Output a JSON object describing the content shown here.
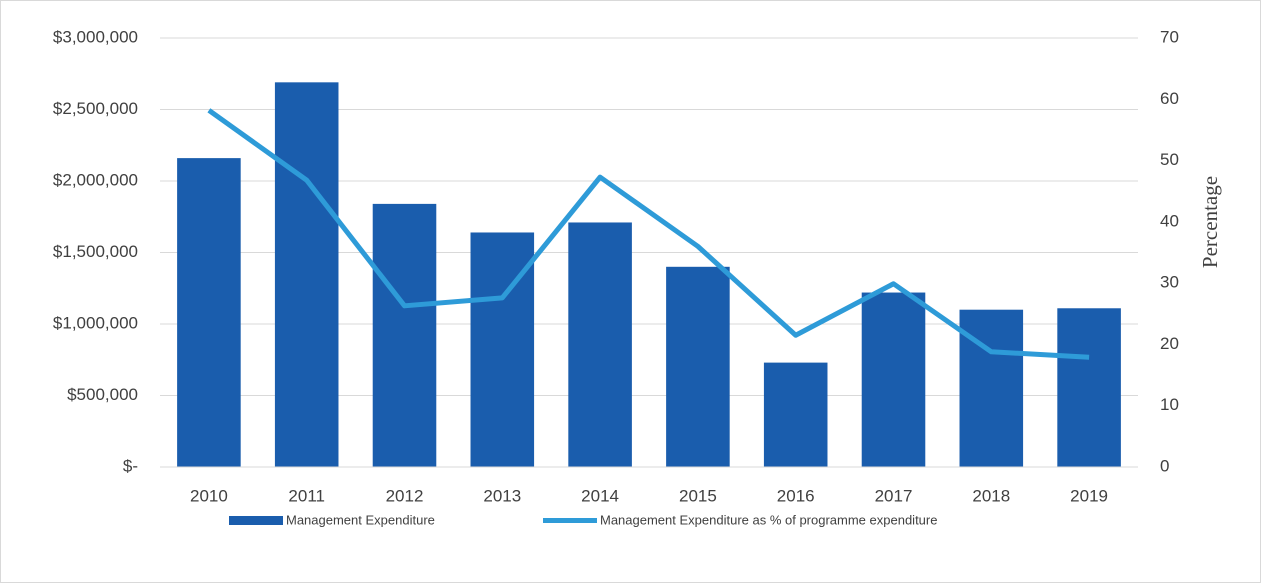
{
  "chart_data": {
    "type": "bar",
    "categories": [
      "2010",
      "2011",
      "2012",
      "2013",
      "2014",
      "2015",
      "2016",
      "2017",
      "2018",
      "2019"
    ],
    "series": [
      {
        "name": "Management Expenditure",
        "type": "bar",
        "color": "#1a5dad",
        "values": [
          2160000,
          2690000,
          1840000,
          1640000,
          1710000,
          1400000,
          730000,
          1220000,
          1100000,
          1110000
        ]
      },
      {
        "name": "Management Expenditure as % of programme expenditure",
        "type": "line",
        "axis": "y2",
        "color": "#2e9bd8",
        "values": [
          58.2,
          46.8,
          26.3,
          27.6,
          47.3,
          36.0,
          21.5,
          29.9,
          18.8,
          17.9
        ]
      }
    ],
    "ylim": [
      0,
      3000000
    ],
    "yticks": [
      {
        "value": 0,
        "label": "$-"
      },
      {
        "value": 500000,
        "label": "$500,000"
      },
      {
        "value": 1000000,
        "label": "$1,000,000"
      },
      {
        "value": 1500000,
        "label": "$1,500,000"
      },
      {
        "value": 2000000,
        "label": "$2,000,000"
      },
      {
        "value": 2500000,
        "label": "$2,500,000"
      },
      {
        "value": 3000000,
        "label": "$3,000,000"
      }
    ],
    "y2lim": [
      0,
      70
    ],
    "y2ticks": [
      0,
      10,
      20,
      30,
      40,
      50,
      60,
      70
    ],
    "y2label": "Percentage",
    "grid": true,
    "legend": "bottom"
  }
}
